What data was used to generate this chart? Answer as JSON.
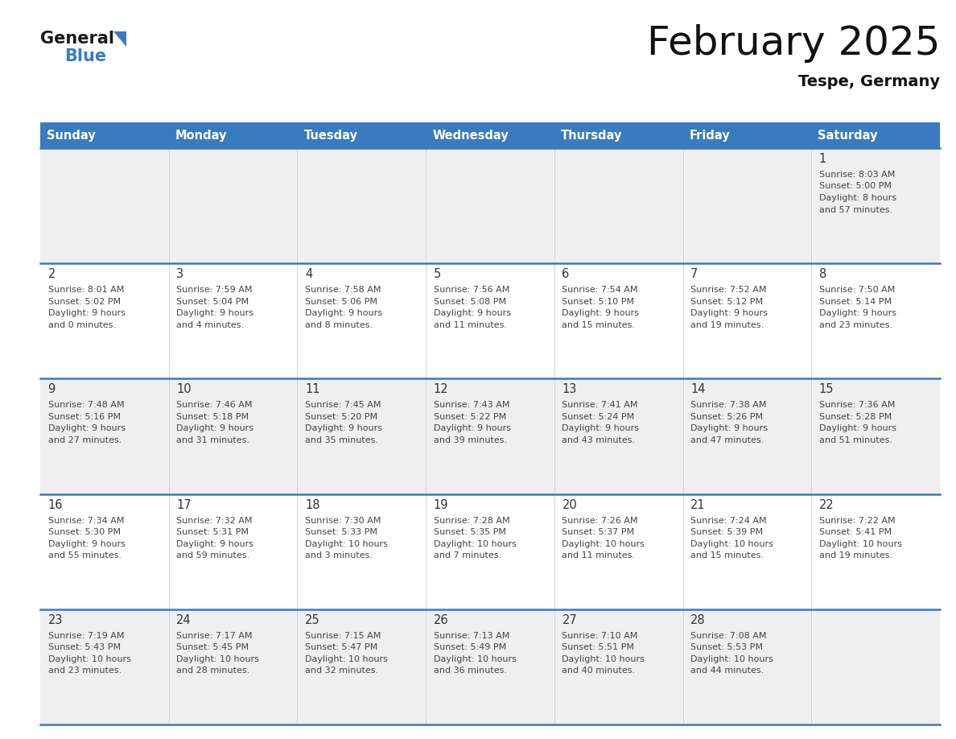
{
  "title": "February 2025",
  "subtitle": "Tespe, Germany",
  "days_of_week": [
    "Sunday",
    "Monday",
    "Tuesday",
    "Wednesday",
    "Thursday",
    "Friday",
    "Saturday"
  ],
  "header_bg": "#3a7bbf",
  "header_text": "#ffffff",
  "row_bg_odd": "#efefef",
  "row_bg_even": "#ffffff",
  "divider_color": "#3a7bbf",
  "text_color": "#444444",
  "day_num_color": "#333333",
  "logo_black": "#1a1a1a",
  "logo_blue": "#3a7bbf",
  "calendar_data": [
    [
      null,
      null,
      null,
      null,
      null,
      null,
      {
        "day": 1,
        "sunrise": "8:03 AM",
        "sunset": "5:00 PM",
        "daylight_h": "8 hours",
        "daylight_m": "57 minutes."
      }
    ],
    [
      {
        "day": 2,
        "sunrise": "8:01 AM",
        "sunset": "5:02 PM",
        "daylight_h": "9 hours",
        "daylight_m": "0 minutes."
      },
      {
        "day": 3,
        "sunrise": "7:59 AM",
        "sunset": "5:04 PM",
        "daylight_h": "9 hours",
        "daylight_m": "4 minutes."
      },
      {
        "day": 4,
        "sunrise": "7:58 AM",
        "sunset": "5:06 PM",
        "daylight_h": "9 hours",
        "daylight_m": "8 minutes."
      },
      {
        "day": 5,
        "sunrise": "7:56 AM",
        "sunset": "5:08 PM",
        "daylight_h": "9 hours",
        "daylight_m": "11 minutes."
      },
      {
        "day": 6,
        "sunrise": "7:54 AM",
        "sunset": "5:10 PM",
        "daylight_h": "9 hours",
        "daylight_m": "15 minutes."
      },
      {
        "day": 7,
        "sunrise": "7:52 AM",
        "sunset": "5:12 PM",
        "daylight_h": "9 hours",
        "daylight_m": "19 minutes."
      },
      {
        "day": 8,
        "sunrise": "7:50 AM",
        "sunset": "5:14 PM",
        "daylight_h": "9 hours",
        "daylight_m": "23 minutes."
      }
    ],
    [
      {
        "day": 9,
        "sunrise": "7:48 AM",
        "sunset": "5:16 PM",
        "daylight_h": "9 hours",
        "daylight_m": "27 minutes."
      },
      {
        "day": 10,
        "sunrise": "7:46 AM",
        "sunset": "5:18 PM",
        "daylight_h": "9 hours",
        "daylight_m": "31 minutes."
      },
      {
        "day": 11,
        "sunrise": "7:45 AM",
        "sunset": "5:20 PM",
        "daylight_h": "9 hours",
        "daylight_m": "35 minutes."
      },
      {
        "day": 12,
        "sunrise": "7:43 AM",
        "sunset": "5:22 PM",
        "daylight_h": "9 hours",
        "daylight_m": "39 minutes."
      },
      {
        "day": 13,
        "sunrise": "7:41 AM",
        "sunset": "5:24 PM",
        "daylight_h": "9 hours",
        "daylight_m": "43 minutes."
      },
      {
        "day": 14,
        "sunrise": "7:38 AM",
        "sunset": "5:26 PM",
        "daylight_h": "9 hours",
        "daylight_m": "47 minutes."
      },
      {
        "day": 15,
        "sunrise": "7:36 AM",
        "sunset": "5:28 PM",
        "daylight_h": "9 hours",
        "daylight_m": "51 minutes."
      }
    ],
    [
      {
        "day": 16,
        "sunrise": "7:34 AM",
        "sunset": "5:30 PM",
        "daylight_h": "9 hours",
        "daylight_m": "55 minutes."
      },
      {
        "day": 17,
        "sunrise": "7:32 AM",
        "sunset": "5:31 PM",
        "daylight_h": "9 hours",
        "daylight_m": "59 minutes."
      },
      {
        "day": 18,
        "sunrise": "7:30 AM",
        "sunset": "5:33 PM",
        "daylight_h": "10 hours",
        "daylight_m": "3 minutes."
      },
      {
        "day": 19,
        "sunrise": "7:28 AM",
        "sunset": "5:35 PM",
        "daylight_h": "10 hours",
        "daylight_m": "7 minutes."
      },
      {
        "day": 20,
        "sunrise": "7:26 AM",
        "sunset": "5:37 PM",
        "daylight_h": "10 hours",
        "daylight_m": "11 minutes."
      },
      {
        "day": 21,
        "sunrise": "7:24 AM",
        "sunset": "5:39 PM",
        "daylight_h": "10 hours",
        "daylight_m": "15 minutes."
      },
      {
        "day": 22,
        "sunrise": "7:22 AM",
        "sunset": "5:41 PM",
        "daylight_h": "10 hours",
        "daylight_m": "19 minutes."
      }
    ],
    [
      {
        "day": 23,
        "sunrise": "7:19 AM",
        "sunset": "5:43 PM",
        "daylight_h": "10 hours",
        "daylight_m": "23 minutes."
      },
      {
        "day": 24,
        "sunrise": "7:17 AM",
        "sunset": "5:45 PM",
        "daylight_h": "10 hours",
        "daylight_m": "28 minutes."
      },
      {
        "day": 25,
        "sunrise": "7:15 AM",
        "sunset": "5:47 PM",
        "daylight_h": "10 hours",
        "daylight_m": "32 minutes."
      },
      {
        "day": 26,
        "sunrise": "7:13 AM",
        "sunset": "5:49 PM",
        "daylight_h": "10 hours",
        "daylight_m": "36 minutes."
      },
      {
        "day": 27,
        "sunrise": "7:10 AM",
        "sunset": "5:51 PM",
        "daylight_h": "10 hours",
        "daylight_m": "40 minutes."
      },
      {
        "day": 28,
        "sunrise": "7:08 AM",
        "sunset": "5:53 PM",
        "daylight_h": "10 hours",
        "daylight_m": "44 minutes."
      },
      null
    ]
  ]
}
